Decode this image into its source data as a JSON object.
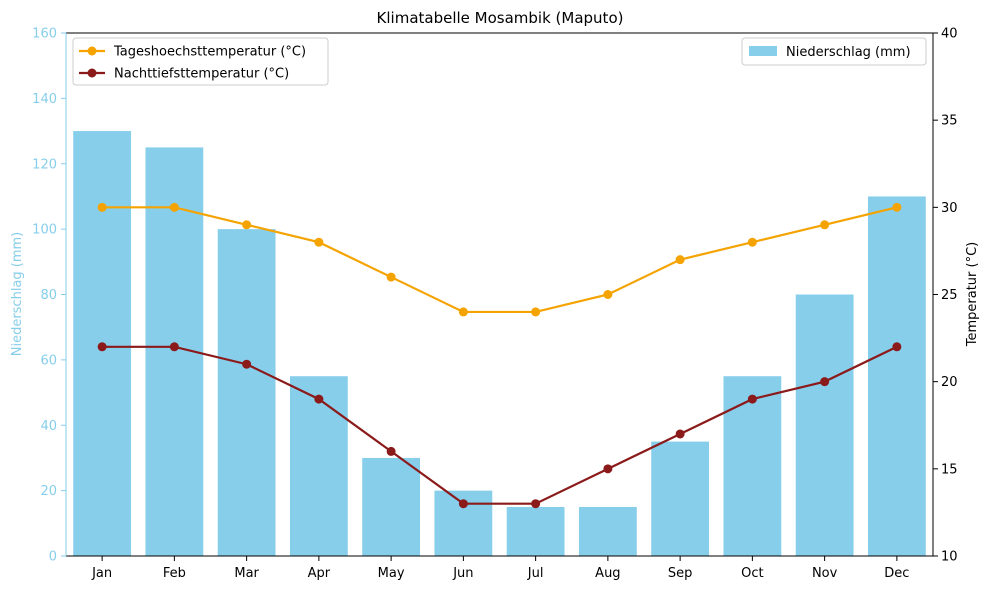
{
  "chart_data": {
    "type": "bar",
    "title": "Klimatabelle Mosambik (Maputo)",
    "categories": [
      "Jan",
      "Feb",
      "Mar",
      "Apr",
      "May",
      "Jun",
      "Jul",
      "Aug",
      "Sep",
      "Oct",
      "Nov",
      "Dec"
    ],
    "y_left": {
      "label": "Niederschlag (mm)",
      "range": [
        0,
        160
      ],
      "ticks": [
        "0",
        "20",
        "40",
        "60",
        "80",
        "100",
        "120",
        "140",
        "160"
      ]
    },
    "y_right": {
      "label": "Temperatur (°C)",
      "range": [
        10,
        40
      ],
      "ticks": [
        "10",
        "15",
        "20",
        "25",
        "30",
        "35",
        "40"
      ]
    },
    "series": [
      {
        "name": "Niederschlag (mm)",
        "type": "bar",
        "axis": "left",
        "color": "#87ceeb",
        "values": [
          130,
          125,
          100,
          55,
          30,
          20,
          15,
          15,
          35,
          55,
          80,
          110
        ]
      },
      {
        "name": "Tageshoechsttemperatur (°C)",
        "type": "line",
        "axis": "right",
        "color": "#f5a300",
        "values": [
          30,
          30,
          29,
          28,
          26,
          24,
          24,
          25,
          27,
          28,
          29,
          30
        ]
      },
      {
        "name": "Nachttiefsttemperatur (°C)",
        "type": "line",
        "axis": "right",
        "color": "#8b1a1a",
        "values": [
          22,
          22,
          21,
          19,
          16,
          13,
          13,
          15,
          17,
          19,
          20,
          22
        ]
      }
    ],
    "legends": [
      {
        "placement": "top-left",
        "entries": [
          "Tageshoechsttemperatur (°C)",
          "Nachttiefsttemperatur (°C)"
        ]
      },
      {
        "placement": "top-right",
        "entries": [
          "Niederschlag (mm)"
        ]
      }
    ],
    "grid": false,
    "left_axis_color": "#87ceeb"
  }
}
